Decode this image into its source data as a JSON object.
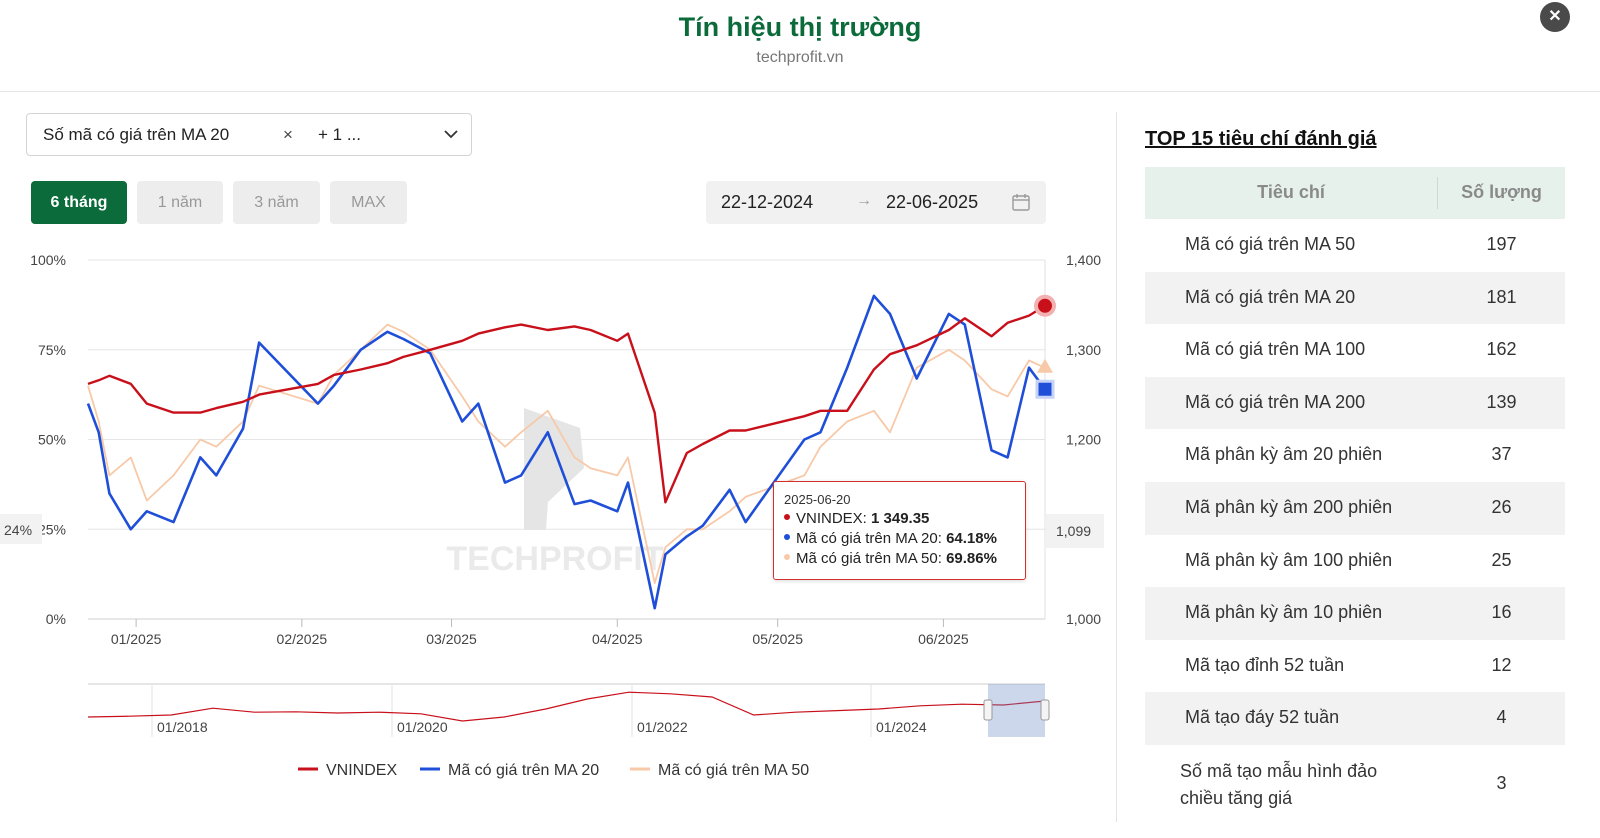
{
  "header": {
    "title": "Tín hiệu thị trường",
    "subtitle": "techprofit.vn",
    "close_label": "✕"
  },
  "selector": {
    "selected_tag": "Số mã có giá trên MA 20",
    "tag_remove": "×",
    "more": "+ 1 ..."
  },
  "range_buttons": [
    {
      "label": "6 tháng",
      "active": true
    },
    {
      "label": "1 năm",
      "active": false
    },
    {
      "label": "3 năm",
      "active": false
    },
    {
      "label": "MAX",
      "active": false
    }
  ],
  "date_range": {
    "start": "22-12-2024",
    "arrow": "→",
    "end": "22-06-2025"
  },
  "tooltip": {
    "date": "2025-06-20",
    "rows": [
      {
        "label": "VNINDEX: ",
        "value": "1 349.35",
        "color": "#c8101b"
      },
      {
        "label": "Mã có giá trên MA 20: ",
        "value": "64.18%",
        "color": "#1f4fd8"
      },
      {
        "label": "Mã có giá trên MA 50: ",
        "value": "69.86%",
        "color": "#f7c9a8"
      }
    ]
  },
  "crosshair": {
    "left_label": "24%",
    "right_label": "1,099"
  },
  "watermark": "TECHPROFIT",
  "colors": {
    "vnindex": "#c8101b",
    "ma20": "#1f4fd8",
    "ma50": "#f7c9a8",
    "accent": "#0b6b3a"
  },
  "chart_data": {
    "type": "line",
    "x_ticks": [
      "01/2025",
      "02/2025",
      "03/2025",
      "04/2025",
      "05/2025",
      "06/2025"
    ],
    "y_left_ticks": [
      "0%",
      "25%",
      "50%",
      "75%",
      "100%"
    ],
    "y_left_range": [
      0,
      100
    ],
    "y_right_ticks": [
      "1,000",
      "1,100",
      "1,200",
      "1,300",
      "1,400"
    ],
    "y_right_range": [
      1000,
      1400
    ],
    "grid": true,
    "legend_position": "bottom",
    "x_range": [
      "2024-12-23",
      "2025-06-20"
    ],
    "series": [
      {
        "name": "VNINDEX",
        "axis": "right",
        "x": [
          "2024-12-23",
          "2024-12-25",
          "2024-12-27",
          "2024-12-31",
          "2025-01-03",
          "2025-01-08",
          "2025-01-13",
          "2025-01-16",
          "2025-01-21",
          "2025-01-24",
          "2025-02-04",
          "2025-02-07",
          "2025-02-12",
          "2025-02-17",
          "2025-02-20",
          "2025-02-25",
          "2025-03-03",
          "2025-03-06",
          "2025-03-11",
          "2025-03-14",
          "2025-03-19",
          "2025-03-24",
          "2025-03-27",
          "2025-04-01",
          "2025-04-03",
          "2025-04-08",
          "2025-04-10",
          "2025-04-14",
          "2025-04-17",
          "2025-04-22",
          "2025-04-25",
          "2025-05-06",
          "2025-05-09",
          "2025-05-14",
          "2025-05-19",
          "2025-05-22",
          "2025-05-27",
          "2025-06-02",
          "2025-06-05",
          "2025-06-10",
          "2025-06-13",
          "2025-06-17",
          "2025-06-20"
        ],
        "values": [
          1262,
          1266,
          1271,
          1262,
          1240,
          1230,
          1230,
          1235,
          1242,
          1250,
          1262,
          1272,
          1278,
          1285,
          1292,
          1300,
          1310,
          1318,
          1325,
          1328,
          1322,
          1326,
          1322,
          1310,
          1318,
          1230,
          1130,
          1185,
          1195,
          1210,
          1210,
          1226,
          1232,
          1232,
          1278,
          1295,
          1305,
          1322,
          1335,
          1315,
          1330,
          1338,
          1349
        ]
      },
      {
        "name": "Mã có giá trên MA 20",
        "axis": "left",
        "x": [
          "2024-12-23",
          "2024-12-25",
          "2024-12-27",
          "2024-12-31",
          "2025-01-03",
          "2025-01-08",
          "2025-01-13",
          "2025-01-16",
          "2025-01-21",
          "2025-01-24",
          "2025-02-04",
          "2025-02-07",
          "2025-02-12",
          "2025-02-17",
          "2025-02-20",
          "2025-02-25",
          "2025-03-03",
          "2025-03-06",
          "2025-03-11",
          "2025-03-14",
          "2025-03-19",
          "2025-03-24",
          "2025-03-27",
          "2025-04-01",
          "2025-04-03",
          "2025-04-08",
          "2025-04-10",
          "2025-04-14",
          "2025-04-17",
          "2025-04-22",
          "2025-04-25",
          "2025-05-06",
          "2025-05-09",
          "2025-05-14",
          "2025-05-19",
          "2025-05-22",
          "2025-05-27",
          "2025-06-02",
          "2025-06-05",
          "2025-06-10",
          "2025-06-13",
          "2025-06-17",
          "2025-06-20"
        ],
        "values": [
          60,
          52,
          35,
          25,
          30,
          27,
          45,
          40,
          53,
          77,
          60,
          65,
          75,
          80,
          78,
          74,
          55,
          60,
          38,
          40,
          52,
          32,
          33,
          30,
          38,
          3,
          18,
          23,
          26,
          36,
          27,
          50,
          52,
          70,
          90,
          85,
          67,
          85,
          82,
          47,
          45,
          70,
          64
        ]
      },
      {
        "name": "Mã có giá trên MA 50",
        "axis": "left",
        "x": [
          "2024-12-23",
          "2024-12-25",
          "2024-12-27",
          "2024-12-31",
          "2025-01-03",
          "2025-01-08",
          "2025-01-13",
          "2025-01-16",
          "2025-01-21",
          "2025-01-24",
          "2025-02-04",
          "2025-02-07",
          "2025-02-12",
          "2025-02-17",
          "2025-02-20",
          "2025-02-25",
          "2025-03-03",
          "2025-03-06",
          "2025-03-11",
          "2025-03-14",
          "2025-03-19",
          "2025-03-24",
          "2025-03-27",
          "2025-04-01",
          "2025-04-03",
          "2025-04-08",
          "2025-04-10",
          "2025-04-14",
          "2025-04-17",
          "2025-04-22",
          "2025-04-25",
          "2025-05-06",
          "2025-05-09",
          "2025-05-14",
          "2025-05-19",
          "2025-05-22",
          "2025-05-27",
          "2025-06-02",
          "2025-06-05",
          "2025-06-10",
          "2025-06-13",
          "2025-06-17",
          "2025-06-20"
        ],
        "values": [
          65,
          55,
          40,
          45,
          33,
          40,
          50,
          48,
          55,
          65,
          60,
          68,
          75,
          82,
          80,
          75,
          62,
          55,
          48,
          52,
          58,
          45,
          42,
          40,
          45,
          10,
          20,
          25,
          25,
          30,
          34,
          40,
          48,
          55,
          58,
          52,
          70,
          75,
          72,
          64,
          62,
          72,
          70
        ]
      }
    ],
    "navigator": {
      "x_ticks": [
        "01/2018",
        "01/2020",
        "01/2022",
        "01/2024"
      ],
      "selection": [
        "2024-12-22",
        "2025-06-22"
      ]
    }
  },
  "legend": [
    {
      "label": "VNINDEX",
      "color": "#c8101b"
    },
    {
      "label": "Mã có giá trên MA 20",
      "color": "#1f4fd8"
    },
    {
      "label": "Mã có giá trên MA 50",
      "color": "#f7c9a8"
    }
  ],
  "top_panel": {
    "title": "TOP 15 tiêu chí đánh giá",
    "headers": [
      "Tiêu chí",
      "Số lượng"
    ],
    "rows": [
      {
        "name": "Mã có giá trên MA 50",
        "count": "197"
      },
      {
        "name": "Mã có giá trên MA 20",
        "count": "181"
      },
      {
        "name": "Mã có giá trên MA 100",
        "count": "162"
      },
      {
        "name": "Mã có giá trên MA 200",
        "count": "139"
      },
      {
        "name": "Mã phân kỳ âm 20 phiên",
        "count": "37"
      },
      {
        "name": "Mã phân kỳ âm 200 phiên",
        "count": "26"
      },
      {
        "name": "Mã phân kỳ âm 100 phiên",
        "count": "25"
      },
      {
        "name": "Mã phân kỳ âm 10 phiên",
        "count": "16"
      },
      {
        "name": "Mã tạo đỉnh 52 tuần",
        "count": "12"
      },
      {
        "name": "Mã tạo đáy 52 tuần",
        "count": "4"
      },
      {
        "name": "Số mã tạo mẫu hình đảo chiều tăng giá",
        "count": "3"
      }
    ]
  }
}
